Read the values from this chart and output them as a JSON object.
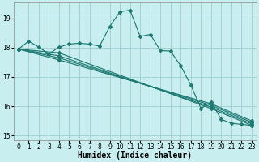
{
  "xlabel": "Humidex (Indice chaleur)",
  "background_color": "#c8eef0",
  "grid_color": "#9ecece",
  "line_color": "#1e7a72",
  "xlim": [
    -0.5,
    23.5
  ],
  "ylim": [
    14.85,
    19.55
  ],
  "xticks": [
    0,
    1,
    2,
    3,
    4,
    5,
    6,
    7,
    8,
    9,
    10,
    11,
    12,
    13,
    14,
    15,
    16,
    17,
    18,
    19,
    20,
    21,
    22,
    23
  ],
  "yticks": [
    15,
    16,
    17,
    18,
    19
  ],
  "main_line_x": [
    0,
    1,
    2,
    3,
    4,
    5,
    6,
    7,
    8,
    9,
    10,
    11,
    12,
    13,
    14,
    15,
    16,
    17,
    18,
    19,
    20,
    21,
    22,
    23
  ],
  "main_line_y": [
    17.95,
    18.22,
    18.02,
    17.78,
    18.02,
    18.12,
    18.15,
    18.12,
    18.05,
    18.72,
    19.22,
    19.28,
    18.38,
    18.45,
    17.9,
    17.88,
    17.38,
    16.72,
    15.92,
    16.15,
    15.55,
    15.42,
    15.38,
    15.35
  ],
  "straight_lines": [
    {
      "x0": 0,
      "y0": 17.95,
      "x1": 4,
      "y1": 17.82,
      "x2": 19,
      "y2": 15.92,
      "x3": 23,
      "y3": 15.35
    },
    {
      "x0": 0,
      "y0": 17.95,
      "x1": 4,
      "y1": 17.72,
      "x2": 19,
      "y2": 15.97,
      "x3": 23,
      "y3": 15.4
    },
    {
      "x0": 0,
      "y0": 17.95,
      "x1": 4,
      "y1": 17.65,
      "x2": 19,
      "y2": 16.03,
      "x3": 23,
      "y3": 15.45
    },
    {
      "x0": 0,
      "y0": 17.95,
      "x1": 4,
      "y1": 17.58,
      "x2": 19,
      "y2": 16.08,
      "x3": 23,
      "y3": 15.5
    }
  ],
  "marker": "D",
  "markersize": 2.0,
  "linewidth": 0.85,
  "tick_fontsize": 5.5,
  "label_fontsize": 7.0
}
